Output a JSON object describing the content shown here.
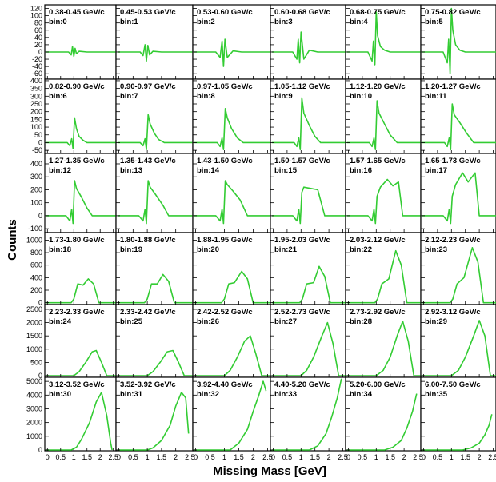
{
  "figure": {
    "ylabel": "Counts",
    "xlabel": "Missing Mass [GeV]",
    "x_ticks": [
      "0",
      "0.5",
      "1",
      "1.5",
      "2",
      "2.5"
    ],
    "line_color": "#33cc33"
  },
  "chart_data": {
    "type": "line",
    "layout": "6x6 grid, rows share y-axis, columns share x-axis",
    "xlim": [
      -0.1,
      2.6
    ],
    "rows": [
      {
        "ylim": [
          -75,
          130
        ],
        "yticks": [
          -60,
          -40,
          -20,
          0,
          20,
          40,
          60,
          80,
          100,
          120
        ]
      },
      {
        "ylim": [
          -70,
          410
        ],
        "yticks": [
          -50,
          0,
          50,
          100,
          150,
          200,
          250,
          300,
          350,
          400
        ]
      },
      {
        "ylim": [
          -130,
          480
        ],
        "yticks": [
          -100,
          0,
          100,
          200,
          300,
          400
        ]
      },
      {
        "ylim": [
          -30,
          1120
        ],
        "yticks": [
          0,
          200,
          400,
          600,
          800,
          1000
        ]
      },
      {
        "ylim": [
          -60,
          2680
        ],
        "yticks": [
          0,
          500,
          1000,
          1500,
          2000,
          2500
        ]
      },
      {
        "ylim": [
          -60,
          5300
        ],
        "yticks": [
          0,
          1000,
          2000,
          3000,
          4000,
          5000
        ]
      }
    ],
    "panels": [
      {
        "label": "0.38-0.45 GeV/c",
        "bin": "bin:0"
      },
      {
        "label": "0.45-0.53 GeV/c",
        "bin": "bin:1"
      },
      {
        "label": "0.53-0.60 GeV/c",
        "bin": "bin:2"
      },
      {
        "label": "0.60-0.68 GeV/c",
        "bin": "bin:3"
      },
      {
        "label": "0.68-0.75 GeV/c",
        "bin": "bin:4"
      },
      {
        "label": "0.75-0.82 GeV/c",
        "bin": "bin:5"
      },
      {
        "label": "0.82-0.90 GeV/c",
        "bin": "bin:6"
      },
      {
        "label": "0.90-0.97 GeV/c",
        "bin": "bin:7"
      },
      {
        "label": "0.97-1.05 GeV/c",
        "bin": "bin:8"
      },
      {
        "label": "1.05-1.12 GeV/c",
        "bin": "bin:9"
      },
      {
        "label": "1.12-1.20 GeV/c",
        "bin": "bin:10"
      },
      {
        "label": "1.20-1.27 GeV/c",
        "bin": "bin:11"
      },
      {
        "label": "1.27-1.35 GeV/c",
        "bin": "bin:12"
      },
      {
        "label": "1.35-1.43 GeV/c",
        "bin": "bin:13"
      },
      {
        "label": "1.43-1.50 GeV/c",
        "bin": "bin:14"
      },
      {
        "label": "1.50-1.57 GeV/c",
        "bin": "bin:15"
      },
      {
        "label": "1.57-1.65 GeV/c",
        "bin": "bin:16"
      },
      {
        "label": "1.65-1.73 GeV/c",
        "bin": "bin:17"
      },
      {
        "label": "1.73-1.80 GeV/c",
        "bin": "bin:18"
      },
      {
        "label": "1.80-1.88 GeV/c",
        "bin": "bin:19"
      },
      {
        "label": "1.88-1.95 GeV/c",
        "bin": "bin:20"
      },
      {
        "label": "1.95-2.03 GeV/c",
        "bin": "bin:21"
      },
      {
        "label": "2.03-2.12 GeV/c",
        "bin": "bin:22"
      },
      {
        "label": "2.12-2.23 GeV/c",
        "bin": "bin:23"
      },
      {
        "label": "2.23-2.33 GeV/c",
        "bin": "bin:24"
      },
      {
        "label": "2.33-2.42 GeV/c",
        "bin": "bin:25"
      },
      {
        "label": "2.42-2.52 GeV/c",
        "bin": "bin:26"
      },
      {
        "label": "2.52-2.73 GeV/c",
        "bin": "bin:27"
      },
      {
        "label": "2.73-2.92 GeV/c",
        "bin": "bin:28"
      },
      {
        "label": "2.92-3.12 GeV/c",
        "bin": "bin:29"
      },
      {
        "label": "3.12-3.52 GeV/c",
        "bin": "bin:30"
      },
      {
        "label": "3.52-3.92 GeV/c",
        "bin": "bin:31"
      },
      {
        "label": "3.92-4.40 GeV/c",
        "bin": "bin:32"
      },
      {
        "label": "4.40-5.20 GeV/c",
        "bin": "bin:33"
      },
      {
        "label": "5.20-6.00 GeV/c",
        "bin": "bin:34"
      },
      {
        "label": "6.00-7.50 GeV/c",
        "bin": "bin:35"
      }
    ],
    "series_points": [
      {
        "x": [
          -0.05,
          0.8,
          0.9,
          0.95,
          1.0,
          1.05,
          1.1,
          1.2,
          1.5,
          2.6
        ],
        "y": [
          0,
          0,
          -8,
          15,
          -12,
          10,
          -5,
          2,
          0,
          0
        ]
      },
      {
        "x": [
          -0.05,
          0.75,
          0.85,
          0.92,
          0.97,
          1.02,
          1.08,
          1.2,
          1.5,
          2.6
        ],
        "y": [
          0,
          0,
          -10,
          20,
          -25,
          18,
          -8,
          2,
          0,
          0
        ]
      },
      {
        "x": [
          -0.05,
          0.7,
          0.85,
          0.92,
          0.97,
          1.02,
          1.1,
          1.3,
          1.6,
          2.6
        ],
        "y": [
          0,
          0,
          -15,
          30,
          -40,
          35,
          -15,
          3,
          0,
          0
        ]
      },
      {
        "x": [
          -0.05,
          0.7,
          0.85,
          0.9,
          0.95,
          1.0,
          1.1,
          1.3,
          1.6,
          2.6
        ],
        "y": [
          0,
          0,
          -20,
          35,
          -30,
          55,
          -20,
          5,
          0,
          0
        ]
      },
      {
        "x": [
          -0.05,
          0.7,
          0.85,
          0.9,
          0.95,
          1.0,
          1.05,
          1.15,
          1.3,
          1.5,
          2.6
        ],
        "y": [
          0,
          0,
          -25,
          30,
          -35,
          110,
          45,
          15,
          5,
          0,
          0
        ]
      },
      {
        "x": [
          -0.05,
          0.7,
          0.85,
          0.9,
          0.95,
          1.0,
          1.05,
          1.15,
          1.3,
          1.5,
          2.6
        ],
        "y": [
          0,
          0,
          -30,
          35,
          -60,
          120,
          60,
          20,
          5,
          0,
          0
        ]
      },
      {
        "x": [
          -0.05,
          0.75,
          0.85,
          0.92,
          0.97,
          1.03,
          1.1,
          1.2,
          1.35,
          1.5,
          2.6
        ],
        "y": [
          0,
          0,
          -20,
          25,
          -40,
          160,
          90,
          40,
          15,
          0,
          0
        ]
      },
      {
        "x": [
          -0.05,
          0.75,
          0.85,
          0.92,
          0.97,
          1.03,
          1.1,
          1.25,
          1.4,
          1.6,
          2.6
        ],
        "y": [
          0,
          0,
          -20,
          25,
          -45,
          180,
          120,
          60,
          20,
          0,
          0
        ]
      },
      {
        "x": [
          -0.05,
          0.75,
          0.85,
          0.92,
          0.97,
          1.03,
          1.1,
          1.25,
          1.45,
          1.65,
          2.6
        ],
        "y": [
          0,
          0,
          -25,
          30,
          -45,
          220,
          160,
          90,
          30,
          0,
          0
        ]
      },
      {
        "x": [
          -0.05,
          0.75,
          0.85,
          0.92,
          0.97,
          1.03,
          1.1,
          1.3,
          1.5,
          1.7,
          2.6
        ],
        "y": [
          0,
          0,
          -25,
          30,
          -45,
          290,
          190,
          110,
          40,
          0,
          0
        ]
      },
      {
        "x": [
          -0.05,
          0.75,
          0.85,
          0.92,
          0.97,
          1.03,
          1.1,
          1.3,
          1.5,
          1.75,
          2.6
        ],
        "y": [
          0,
          0,
          -25,
          30,
          -45,
          270,
          190,
          120,
          50,
          0,
          0
        ]
      },
      {
        "x": [
          -0.05,
          0.75,
          0.85,
          0.92,
          0.97,
          1.03,
          1.1,
          1.3,
          1.55,
          1.8,
          2.6
        ],
        "y": [
          0,
          0,
          -25,
          30,
          -45,
          250,
          180,
          130,
          60,
          0,
          0
        ]
      },
      {
        "x": [
          -0.05,
          0.7,
          0.85,
          0.92,
          0.97,
          1.03,
          1.1,
          1.3,
          1.5,
          1.7,
          2.6
        ],
        "y": [
          0,
          0,
          -40,
          50,
          -60,
          270,
          210,
          140,
          60,
          0,
          0
        ]
      },
      {
        "x": [
          -0.05,
          0.7,
          0.85,
          0.92,
          0.97,
          1.03,
          1.1,
          1.3,
          1.55,
          1.75,
          2.6
        ],
        "y": [
          0,
          0,
          -40,
          50,
          -60,
          270,
          220,
          160,
          80,
          0,
          0
        ]
      },
      {
        "x": [
          -0.05,
          0.7,
          0.85,
          0.92,
          0.97,
          1.03,
          1.1,
          1.3,
          1.55,
          1.8,
          2.6
        ],
        "y": [
          0,
          0,
          -40,
          50,
          -60,
          270,
          240,
          190,
          120,
          0,
          0
        ]
      },
      {
        "x": [
          -0.05,
          0.7,
          0.85,
          0.92,
          0.97,
          1.03,
          1.1,
          1.35,
          1.6,
          1.85,
          2.6
        ],
        "y": [
          0,
          0,
          -40,
          50,
          -60,
          180,
          220,
          210,
          200,
          0,
          0
        ]
      },
      {
        "x": [
          -0.05,
          0.7,
          0.85,
          0.92,
          0.97,
          1.03,
          1.15,
          1.4,
          1.6,
          1.8,
          1.95,
          2.6
        ],
        "y": [
          0,
          0,
          -40,
          50,
          -60,
          150,
          220,
          280,
          230,
          260,
          0,
          0
        ]
      },
      {
        "x": [
          -0.05,
          0.7,
          0.85,
          0.92,
          0.97,
          1.03,
          1.15,
          1.4,
          1.6,
          1.85,
          2.0,
          2.6
        ],
        "y": [
          0,
          0,
          -40,
          50,
          -60,
          150,
          240,
          330,
          260,
          330,
          0,
          0
        ]
      },
      {
        "x": [
          -0.05,
          0.9,
          1.0,
          1.15,
          1.35,
          1.55,
          1.75,
          1.95,
          2.6
        ],
        "y": [
          0,
          0,
          60,
          300,
          280,
          380,
          300,
          0,
          0
        ]
      },
      {
        "x": [
          -0.05,
          0.9,
          1.0,
          1.15,
          1.35,
          1.55,
          1.75,
          1.95,
          2.6
        ],
        "y": [
          0,
          0,
          60,
          300,
          300,
          450,
          340,
          0,
          0
        ]
      },
      {
        "x": [
          -0.05,
          0.9,
          1.0,
          1.15,
          1.35,
          1.6,
          1.8,
          2.0,
          2.6
        ],
        "y": [
          0,
          0,
          60,
          300,
          320,
          500,
          380,
          0,
          0
        ]
      },
      {
        "x": [
          -0.05,
          0.95,
          1.05,
          1.2,
          1.45,
          1.65,
          1.85,
          2.05,
          2.6
        ],
        "y": [
          0,
          0,
          60,
          300,
          320,
          580,
          420,
          0,
          0
        ]
      },
      {
        "x": [
          -0.05,
          0.95,
          1.05,
          1.2,
          1.45,
          1.7,
          1.9,
          2.1,
          2.6
        ],
        "y": [
          0,
          0,
          60,
          300,
          380,
          830,
          600,
          0,
          0
        ]
      },
      {
        "x": [
          -0.05,
          0.95,
          1.05,
          1.2,
          1.45,
          1.75,
          1.95,
          2.15,
          2.6
        ],
        "y": [
          0,
          0,
          60,
          300,
          400,
          880,
          650,
          0,
          0
        ]
      },
      {
        "x": [
          -0.05,
          1.0,
          1.2,
          1.45,
          1.7,
          1.85,
          2.05,
          2.25,
          2.6
        ],
        "y": [
          0,
          0,
          150,
          500,
          900,
          950,
          500,
          0,
          0
        ]
      },
      {
        "x": [
          -0.05,
          1.0,
          1.2,
          1.45,
          1.7,
          1.9,
          2.1,
          2.3,
          2.6
        ],
        "y": [
          0,
          0,
          150,
          500,
          900,
          950,
          500,
          0,
          0
        ]
      },
      {
        "x": [
          -0.05,
          1.0,
          1.2,
          1.45,
          1.7,
          1.9,
          2.1,
          2.3,
          2.6
        ],
        "y": [
          0,
          0,
          200,
          700,
          1300,
          1500,
          800,
          0,
          0
        ]
      },
      {
        "x": [
          -0.05,
          1.0,
          1.2,
          1.45,
          1.75,
          1.95,
          2.15,
          2.35,
          2.6
        ],
        "y": [
          0,
          0,
          200,
          700,
          1500,
          2000,
          1200,
          0,
          0
        ]
      },
      {
        "x": [
          -0.05,
          1.0,
          1.25,
          1.5,
          1.75,
          1.95,
          2.15,
          2.35,
          2.6
        ],
        "y": [
          0,
          0,
          200,
          700,
          1500,
          2050,
          1300,
          0,
          0
        ]
      },
      {
        "x": [
          -0.05,
          1.0,
          1.25,
          1.5,
          1.8,
          2.0,
          2.2,
          2.4,
          2.6
        ],
        "y": [
          0,
          0,
          200,
          700,
          1500,
          2080,
          1500,
          0,
          0
        ]
      },
      {
        "x": [
          -0.05,
          0.9,
          1.1,
          1.3,
          1.6,
          1.85,
          2.05,
          2.25,
          2.4,
          2.45
        ],
        "y": [
          0,
          0,
          200,
          800,
          2000,
          3500,
          4200,
          2500,
          500,
          0
        ]
      },
      {
        "x": [
          -0.05,
          1.0,
          1.2,
          1.5,
          1.8,
          2.0,
          2.2,
          2.35,
          2.45
        ],
        "y": [
          0,
          0,
          150,
          700,
          1800,
          3200,
          4200,
          3800,
          1200
        ]
      },
      {
        "x": [
          -0.05,
          1.2,
          1.5,
          1.8,
          2.0,
          2.2,
          2.35,
          2.45
        ],
        "y": [
          0,
          0,
          500,
          1500,
          2800,
          4000,
          5000,
          4300
        ]
      },
      {
        "x": [
          -0.05,
          1.3,
          1.6,
          1.9,
          2.1,
          2.3,
          2.45
        ],
        "y": [
          0,
          0,
          300,
          1200,
          2400,
          3800,
          5200
        ]
      },
      {
        "x": [
          -0.05,
          1.3,
          1.6,
          1.9,
          2.1,
          2.3,
          2.45
        ],
        "y": [
          0,
          0,
          200,
          700,
          1600,
          2800,
          4100
        ]
      },
      {
        "x": [
          -0.05,
          1.4,
          1.7,
          2.0,
          2.2,
          2.35,
          2.45
        ],
        "y": [
          0,
          0,
          150,
          500,
          1100,
          1800,
          2600
        ]
      }
    ]
  }
}
